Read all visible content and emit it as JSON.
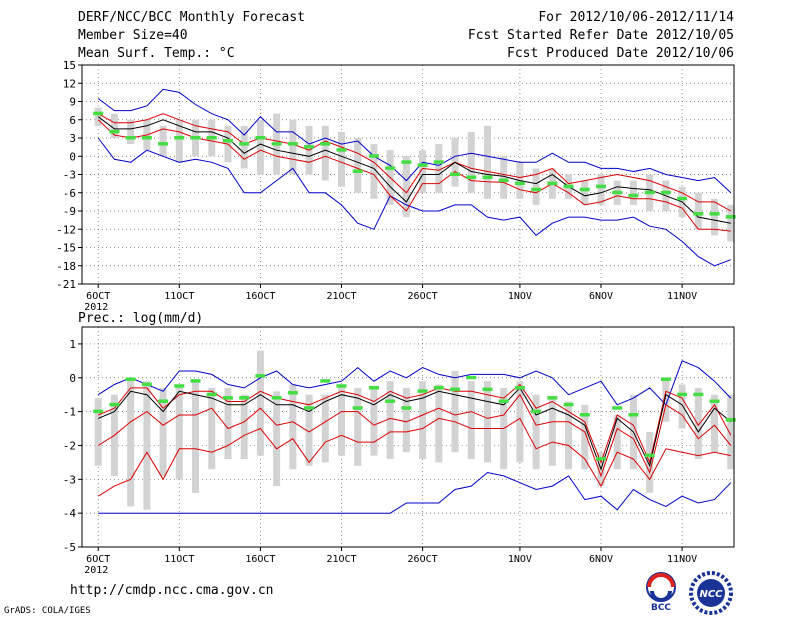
{
  "header": {
    "title": "DERF/NCC/BCC Monthly Forecast",
    "member_size": "Member Size=40",
    "variable": "Mean Surf. Temp.: °C",
    "period": "For 2012/10/06-2012/11/14",
    "started": "Fcst Started Refer Date 2012/10/05",
    "produced": "Fcst Produced Date 2012/10/06"
  },
  "footer": {
    "url": "http://cmdp.ncc.cma.gov.cn",
    "grads": "GrADS: COLA/IGES"
  },
  "logos": {
    "bcc": "BCC",
    "ncc": "NCC"
  },
  "colors": {
    "envelope": "#0000cc",
    "spread": "#dd0000",
    "mean": "#000000",
    "median": "#44dd44",
    "box": "#d3d3d3",
    "grid": "#666666"
  },
  "chart_data": [
    {
      "type": "line",
      "title": "Mean Surf. Temp.: °C",
      "xlabel": "",
      "ylabel": "",
      "x_start_label": "6OCT 2012",
      "x_tick_labels": [
        "6OCT",
        "11OCT",
        "16OCT",
        "21OCT",
        "26OCT",
        "1NOV",
        "6NOV",
        "11NOV"
      ],
      "x_tick_days": [
        1,
        6,
        11,
        16,
        21,
        27,
        32,
        37
      ],
      "x_range": [
        0,
        40.2
      ],
      "ylim": [
        -21,
        15
      ],
      "y_ticks": [
        15,
        12,
        9,
        6,
        3,
        0,
        -3,
        -6,
        -9,
        -12,
        -15,
        -18,
        -21
      ],
      "grid": true,
      "days": [
        1,
        2,
        3,
        4,
        5,
        6,
        7,
        8,
        9,
        10,
        11,
        12,
        13,
        14,
        15,
        16,
        17,
        18,
        19,
        20,
        21,
        22,
        23,
        24,
        25,
        26,
        27,
        28,
        29,
        30,
        31,
        32,
        33,
        34,
        35,
        36,
        37,
        38,
        39,
        40
      ],
      "series": [
        {
          "name": "max",
          "values": [
            9.5,
            7.5,
            7.5,
            8.3,
            11,
            10.5,
            8.5,
            7,
            6,
            3.5,
            6.5,
            4,
            4,
            2,
            3,
            2,
            2.5,
            0,
            -1.5,
            -4,
            -1,
            -1.5,
            0,
            0.5,
            0,
            -0.5,
            -1,
            -1,
            0.5,
            -1,
            -1,
            -2,
            -2,
            -2.5,
            -2,
            -3,
            -3.5,
            -4,
            -3.5,
            -6
          ]
        },
        {
          "name": "upper",
          "values": [
            7,
            5.5,
            5.5,
            6,
            7,
            6,
            5,
            4.5,
            4,
            2,
            3,
            2.5,
            2,
            1,
            2.5,
            1.5,
            0.5,
            -1,
            -3.5,
            -6,
            -2,
            -2.3,
            -1,
            -2,
            -2.5,
            -3,
            -3.5,
            -3,
            -2,
            -4.5,
            -4,
            -3.5,
            -3,
            -3.5,
            -4,
            -5,
            -6,
            -7.5,
            -7.5,
            -9
          ]
        },
        {
          "name": "mean",
          "values": [
            6.5,
            4.5,
            4.5,
            5,
            6,
            5,
            4,
            4,
            3,
            0.5,
            2,
            1,
            0.5,
            0,
            1,
            0,
            -1,
            -2,
            -5,
            -7.5,
            -3,
            -3,
            -1,
            -2.5,
            -3,
            -3.3,
            -4,
            -4.5,
            -3,
            -5,
            -6.5,
            -6,
            -5,
            -5.3,
            -5.5,
            -6.5,
            -7.5,
            -10,
            -10.5,
            -11
          ]
        },
        {
          "name": "lower",
          "values": [
            6,
            3.5,
            3,
            3.5,
            4.5,
            4,
            3,
            2.5,
            2,
            -0.5,
            1,
            0,
            -0.5,
            -1,
            0,
            -1,
            -2,
            -3,
            -6.5,
            -9,
            -4.5,
            -4.5,
            -2.5,
            -4,
            -4.2,
            -4.3,
            -5.5,
            -6,
            -4.5,
            -6,
            -8,
            -7.5,
            -6.5,
            -7,
            -7,
            -7.5,
            -8.5,
            -12,
            -12,
            -12.3
          ]
        },
        {
          "name": "min",
          "values": [
            3,
            -0.5,
            -1,
            1,
            0,
            -1,
            -0.5,
            -1,
            -2,
            -6,
            -6,
            -4,
            -2,
            -6,
            -6,
            -8,
            -11,
            -12,
            -6.5,
            -8,
            -9,
            -9,
            -8,
            -8,
            -10,
            -10.5,
            -10,
            -13,
            -11,
            -10,
            -10,
            -10.5,
            -10.5,
            -10,
            -11.5,
            -12,
            -14,
            -16.5,
            -18,
            -17
          ]
        },
        {
          "name": "median",
          "values": [
            7,
            4,
            3,
            3,
            2,
            3,
            3,
            3,
            2.5,
            2,
            3,
            2,
            2,
            1.5,
            2,
            1,
            -2.5,
            0,
            -2,
            -1,
            -1.5,
            -1,
            -3,
            -3.5,
            -3.5,
            -4,
            -4.5,
            -5.5,
            -4.5,
            -5,
            -5.5,
            -5,
            -6,
            -6.5,
            -6,
            -6,
            -7,
            -9.5,
            -9.5,
            -10
          ]
        },
        {
          "name": "box_top",
          "values": [
            8,
            7,
            6,
            6,
            5,
            6,
            6,
            6,
            5,
            5,
            6,
            7,
            6,
            5,
            5,
            4,
            3,
            2,
            1,
            0,
            1,
            2,
            3,
            4,
            5,
            0,
            -1,
            -2,
            -2,
            -3,
            -4,
            -3,
            -4,
            -4,
            -3,
            -4,
            -5,
            -6,
            -7,
            -8
          ]
        },
        {
          "name": "box_bottom",
          "values": [
            5,
            3,
            2,
            1,
            0,
            -1,
            0,
            0,
            -1,
            -2,
            -3,
            -3,
            -3,
            -3,
            -4,
            -5,
            -6,
            -7,
            -8,
            -10,
            -6,
            -6,
            -5,
            -6,
            -7,
            -7,
            -7,
            -8,
            -7,
            -7,
            -8,
            -8,
            -8,
            -8,
            -9,
            -9,
            -10,
            -12,
            -13,
            -14
          ]
        }
      ]
    },
    {
      "type": "line",
      "title": "Prec.: log(mm/d)",
      "xlabel": "",
      "ylabel": "",
      "x_start_label": "6OCT 2012",
      "x_tick_labels": [
        "6OCT",
        "11OCT",
        "16OCT",
        "21OCT",
        "26OCT",
        "1NOV",
        "6NOV",
        "11NOV"
      ],
      "x_tick_days": [
        1,
        6,
        11,
        16,
        21,
        27,
        32,
        37
      ],
      "x_range": [
        0,
        40.2
      ],
      "ylim": [
        -5,
        1.5
      ],
      "y_ticks": [
        1,
        0,
        -1,
        -2,
        -3,
        -4,
        -5
      ],
      "grid": true,
      "days": [
        1,
        2,
        3,
        4,
        5,
        6,
        7,
        8,
        9,
        10,
        11,
        12,
        13,
        14,
        15,
        16,
        17,
        18,
        19,
        20,
        21,
        22,
        23,
        24,
        25,
        26,
        27,
        28,
        29,
        30,
        31,
        32,
        33,
        34,
        35,
        36,
        37,
        38,
        39,
        40
      ],
      "series": [
        {
          "name": "max",
          "values": [
            -0.5,
            -0.2,
            0,
            -0.2,
            -0.4,
            0.2,
            0.2,
            0.1,
            -0.2,
            -0.3,
            0,
            0.2,
            -0.2,
            -0.3,
            -0.2,
            -0.1,
            0.3,
            -0.1,
            0.2,
            0,
            0.3,
            0.1,
            0,
            0.1,
            0.1,
            0.1,
            0,
            0.2,
            0,
            -0.5,
            -0.3,
            -0.1,
            -0.8,
            -0.6,
            -0.3,
            -0.8,
            0.5,
            0.3,
            -0.1,
            -0.6
          ]
        },
        {
          "name": "upper",
          "values": [
            -1.1,
            -0.9,
            -0.3,
            -0.3,
            -0.9,
            -0.5,
            -0.4,
            -0.4,
            -0.7,
            -0.7,
            -0.4,
            -0.6,
            -0.7,
            -0.8,
            -0.6,
            -0.4,
            -0.5,
            -0.7,
            -0.4,
            -0.6,
            -0.5,
            -0.3,
            -0.4,
            -0.4,
            -0.5,
            -0.6,
            -0.2,
            -0.9,
            -0.7,
            -1,
            -1.3,
            -2.5,
            -1.1,
            -1.4,
            -2.5,
            -0.4,
            -0.6,
            -1.4,
            -0.8,
            -1.7
          ]
        },
        {
          "name": "mean",
          "values": [
            -1.2,
            -1.0,
            -0.4,
            -0.5,
            -1.0,
            -0.4,
            -0.5,
            -0.6,
            -0.8,
            -0.8,
            -0.5,
            -0.8,
            -0.8,
            -1.0,
            -0.7,
            -0.5,
            -0.6,
            -0.8,
            -0.5,
            -0.7,
            -0.6,
            -0.4,
            -0.5,
            -0.6,
            -0.7,
            -0.8,
            -0.3,
            -1.1,
            -0.9,
            -1.1,
            -1.4,
            -2.7,
            -1.2,
            -1.6,
            -2.6,
            -0.5,
            -0.8,
            -1.6,
            -0.9,
            -1.3
          ]
        },
        {
          "name": "lower",
          "values": [
            -2,
            -1.7,
            -1.3,
            -1,
            -1.4,
            -1.1,
            -1.1,
            -0.9,
            -1.5,
            -1.3,
            -0.9,
            -1.4,
            -1.3,
            -1.6,
            -1.3,
            -1,
            -1,
            -1.4,
            -1.2,
            -1.3,
            -1.1,
            -0.9,
            -1.1,
            -1,
            -1.2,
            -1.1,
            -0.5,
            -1.4,
            -1.3,
            -1.3,
            -1.6,
            -2.9,
            -1.5,
            -1.8,
            -2.8,
            -0.8,
            -1.1,
            -1.8,
            -1.4,
            -2
          ]
        },
        {
          "name": "min",
          "values": [
            -3.5,
            -3.2,
            -3,
            -2.2,
            -3,
            -2.1,
            -2.1,
            -2.2,
            -2,
            -1.7,
            -1.5,
            -2.1,
            -1.8,
            -2.5,
            -1.9,
            -1.7,
            -1.9,
            -1.9,
            -1.6,
            -1.6,
            -1.5,
            -1.2,
            -1.3,
            -1.5,
            -1.5,
            -1.5,
            -1.2,
            -2.1,
            -1.9,
            -2,
            -2.4,
            -3.2,
            -2.2,
            -2.4,
            -3,
            -2.1,
            -2.2,
            -2.3,
            -2.2,
            -2.3
          ]
        },
        {
          "name": "median",
          "values": [
            -1.0,
            -0.8,
            -0.05,
            -0.2,
            -0.7,
            -0.25,
            -0.1,
            -0.5,
            -0.6,
            -0.6,
            0.05,
            -0.6,
            -0.45,
            -0.9,
            -0.1,
            -0.25,
            -0.9,
            -0.3,
            -0.7,
            -0.9,
            -0.4,
            -0.3,
            -0.35,
            -0.0,
            -0.35,
            -0.7,
            -0.3,
            -1.0,
            -0.6,
            -0.8,
            -1.1,
            -2.4,
            -0.9,
            -1.1,
            -2.3,
            -0.05,
            -0.5,
            -0.5,
            -0.7,
            -1.25
          ]
        },
        {
          "name": "box_top",
          "values": [
            -0.6,
            -0.5,
            0,
            -0.1,
            -0.3,
            -0.2,
            -0.1,
            -0.3,
            -0.3,
            -0.5,
            0.8,
            -0.4,
            -0.2,
            -0.5,
            -0.5,
            -0.3,
            -0.3,
            -0.3,
            -0.1,
            -0.3,
            -0.1,
            -0.2,
            0.2,
            -0.1,
            -0.1,
            -0.3,
            -0.1,
            -0.5,
            -0.6,
            -0.7,
            -0.8,
            -2.2,
            -1.1,
            -0.5,
            -1.6,
            0,
            -0.2,
            -0.3,
            -0.5,
            -0.5
          ]
        },
        {
          "name": "box_bottom",
          "values": [
            -2.6,
            -2.9,
            -3.8,
            -3.9,
            -2.9,
            -3,
            -3.4,
            -2.7,
            -2.4,
            -2.4,
            -2.3,
            -3.2,
            -2.7,
            -2.6,
            -2.5,
            -2.3,
            -2.6,
            -2.3,
            -2.4,
            -2.2,
            -2.4,
            -2.5,
            -2.2,
            -2.4,
            -2.5,
            -2.7,
            -2.5,
            -2.7,
            -2.6,
            -2.7,
            -2.7,
            -3.2,
            -2.7,
            -2.7,
            -3.4,
            -1.3,
            -1.5,
            -2.4,
            -2.2,
            -2.7
          ]
        }
      ],
      "envelope_min": [
        -4,
        -4,
        -4,
        -4,
        -4,
        -4,
        -4,
        -4,
        -4,
        -4,
        -4,
        -4,
        -4,
        -4,
        -4,
        -4,
        -4,
        -4,
        -4,
        -3.7,
        -3.7,
        -3.7,
        -3.3,
        -3.2,
        -2.8,
        -2.9,
        -3.1,
        -3.3,
        -3.2,
        -2.9,
        -3.6,
        -3.5,
        -3.9,
        -3.3,
        -3.6,
        -3.8,
        -3.5,
        -3.7,
        -3.6,
        -3.1
      ]
    }
  ]
}
